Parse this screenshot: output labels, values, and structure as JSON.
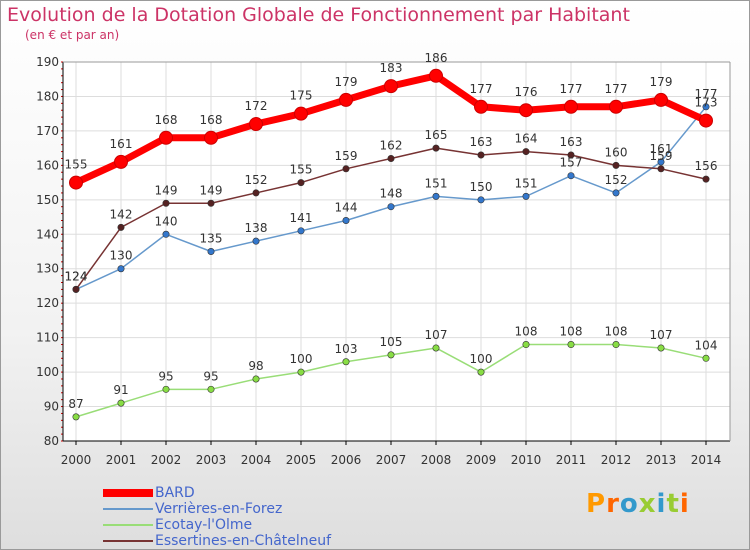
{
  "header": {
    "title": "Evolution de la Dotation Globale de Fonctionnement par Habitant",
    "subtitle": "(en € et par an)"
  },
  "logo_text": "Proxiti",
  "colors": {
    "title": "#cc3366",
    "axis": "#000000",
    "grid": "#dddddd",
    "legend_text": "#4466cc"
  },
  "chart_data": {
    "type": "line",
    "x": [
      "2000",
      "2001",
      "2002",
      "2003",
      "2004",
      "2005",
      "2006",
      "2007",
      "2008",
      "2009",
      "2010",
      "2011",
      "2012",
      "2013",
      "2014"
    ],
    "ylim": [
      80,
      190
    ],
    "yticks": [
      80,
      90,
      100,
      110,
      120,
      130,
      140,
      150,
      160,
      170,
      180,
      190
    ],
    "grid": true,
    "legend_position": "bottom-left",
    "series": [
      {
        "name": "BARD",
        "color": "#ff0000",
        "marker_color": "#ff0000",
        "values": [
          155,
          161,
          168,
          168,
          172,
          175,
          179,
          183,
          186,
          177,
          176,
          177,
          177,
          179,
          173
        ],
        "labels": [
          "155",
          "161",
          "168",
          "168",
          "172",
          "175",
          "179",
          "183",
          "186",
          "177",
          "176",
          "177",
          "177",
          "179",
          "173"
        ]
      },
      {
        "name": "Verrières-en-Forez",
        "color": "#6699cc",
        "marker_color": "#3377cc",
        "values": [
          124,
          130,
          140,
          135,
          138,
          141,
          144,
          148,
          151,
          150,
          151,
          157,
          152,
          161,
          177
        ],
        "labels": [
          "124",
          "130",
          "140",
          "135",
          "138",
          "141",
          "144",
          "148",
          "151",
          "150",
          "151",
          "157",
          "152",
          "161",
          "177"
        ]
      },
      {
        "name": "Ecotay-l'Olme",
        "color": "#99dd77",
        "marker_color": "#88dd44",
        "values": [
          87,
          91,
          95,
          95,
          98,
          100,
          103,
          105,
          107,
          100,
          108,
          108,
          108,
          107,
          104
        ],
        "labels": [
          "87",
          "91",
          "95",
          "95",
          "98",
          "100",
          "103",
          "105",
          "107",
          "100",
          "108",
          "108",
          "108",
          "107",
          "104"
        ]
      },
      {
        "name": "Essertines-en-Châtelneuf",
        "color": "#773333",
        "marker_color": "#552222",
        "values": [
          124,
          142,
          149,
          149,
          152,
          155,
          159,
          162,
          165,
          163,
          164,
          163,
          160,
          159,
          156
        ],
        "labels": [
          "124",
          "142",
          "149",
          "149",
          "152",
          "155",
          "159",
          "162",
          "165",
          "163",
          "164",
          "163",
          "160",
          "159",
          "156"
        ]
      }
    ]
  }
}
